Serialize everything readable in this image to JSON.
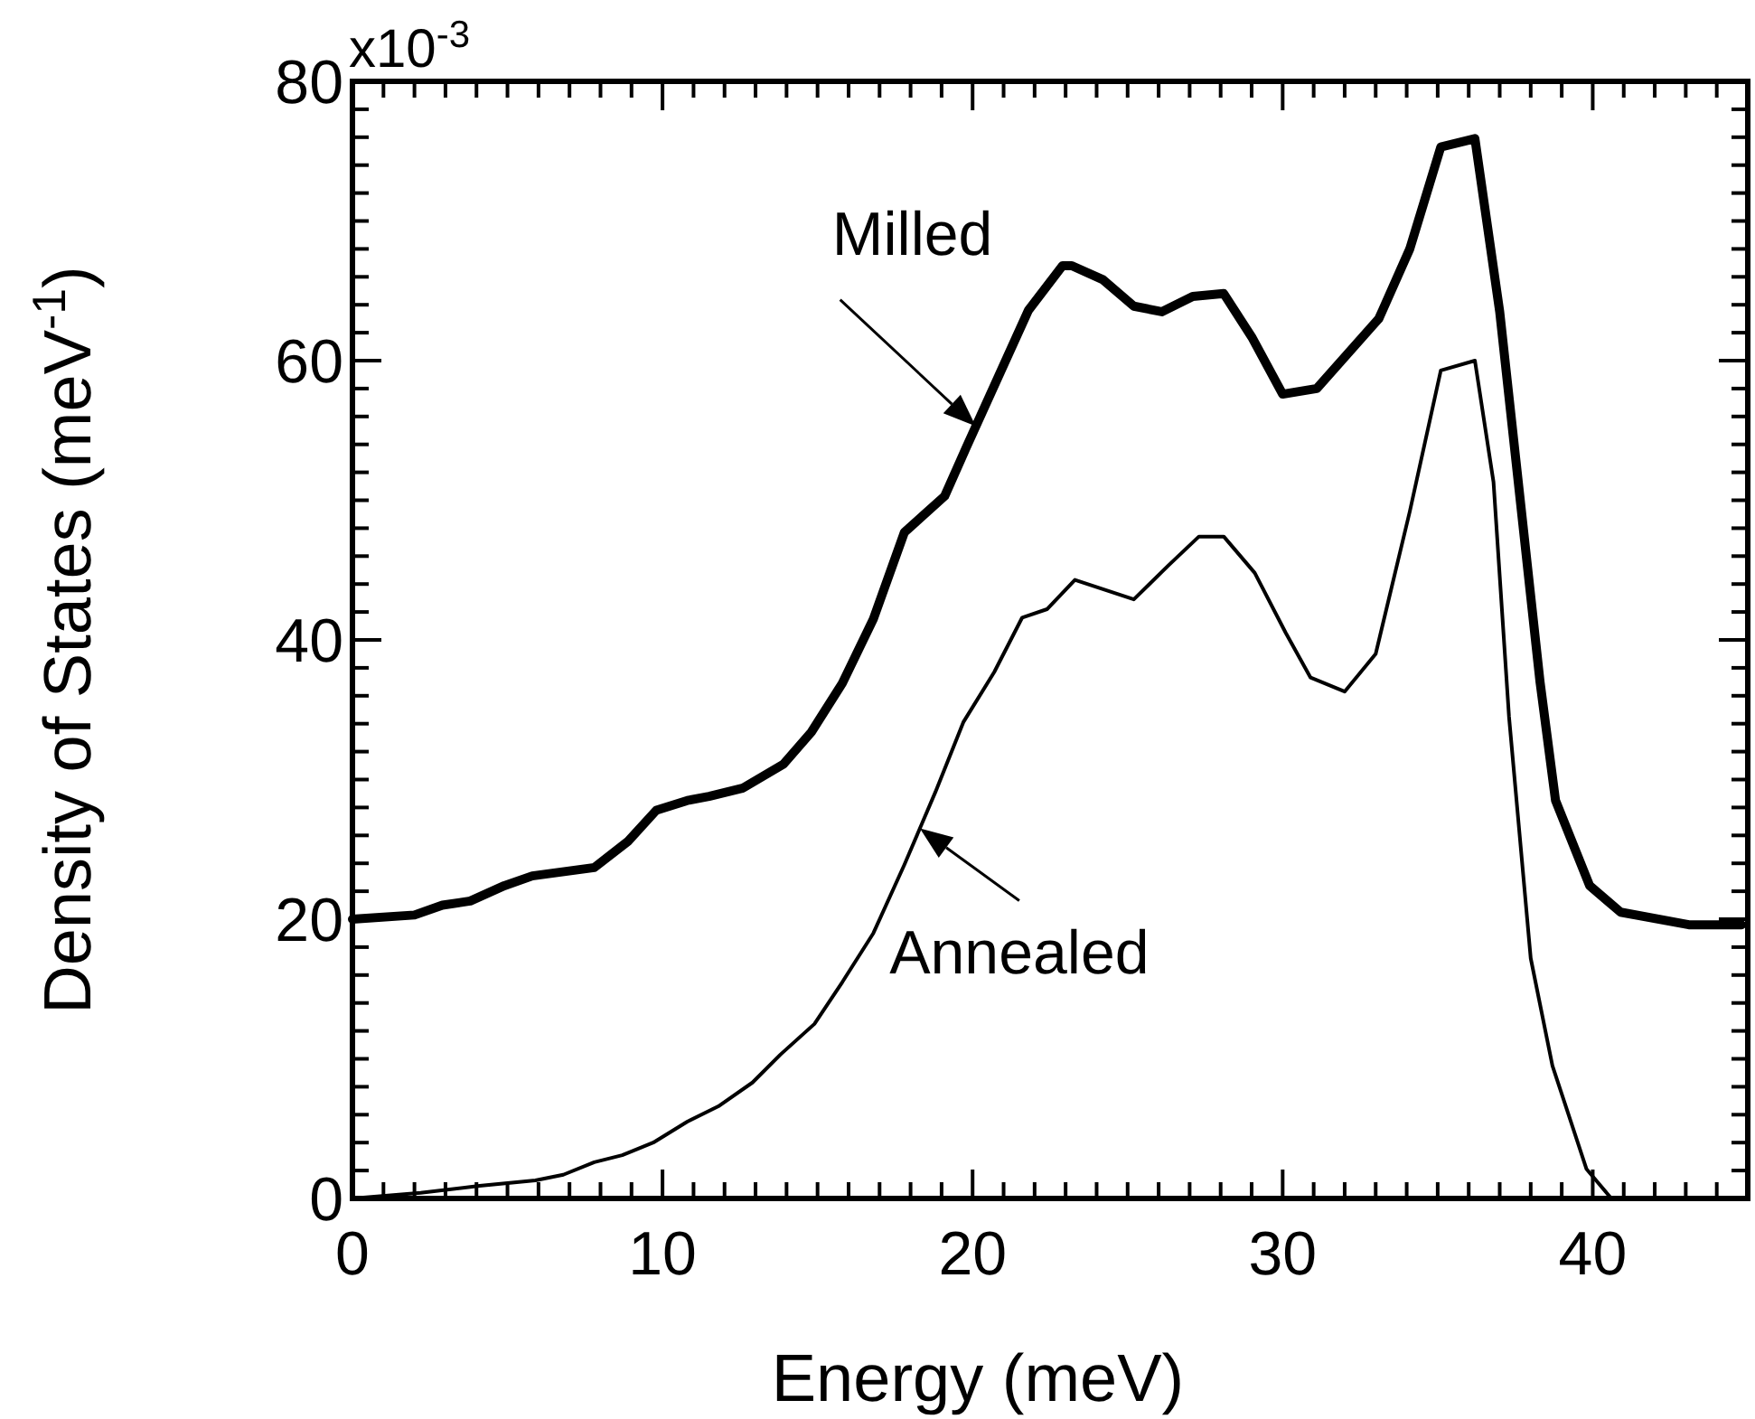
{
  "chart_data": {
    "type": "line",
    "xlabel": "Energy (meV)",
    "ylabel": "Density of States (meV$^{-1}$)",
    "xlim": [
      0,
      45
    ],
    "ylim": [
      0,
      80
    ],
    "xticks": [
      0,
      {
        "value": 1,
        "label": null
      },
      {
        "value": 2,
        "label": null
      },
      {
        "value": 3,
        "label": null
      },
      {
        "value": 4,
        "label": null
      },
      {
        "value": 5,
        "label": null
      },
      {
        "value": 6,
        "label": null
      },
      {
        "value": 7,
        "label": null
      },
      {
        "value": 8,
        "label": null
      },
      {
        "value": 9,
        "label": null
      },
      10,
      {
        "value": 11,
        "label": null
      },
      {
        "value": 12,
        "label": null
      },
      {
        "value": 13,
        "label": null
      },
      {
        "value": 14,
        "label": null
      },
      {
        "value": 15,
        "label": null
      },
      {
        "value": 16,
        "label": null
      },
      {
        "value": 17,
        "label": null
      },
      {
        "value": 18,
        "label": null
      },
      {
        "value": 19,
        "label": null
      },
      20,
      {
        "value": 21,
        "label": null
      },
      {
        "value": 22,
        "label": null
      },
      {
        "value": 23,
        "label": null
      },
      {
        "value": 24,
        "label": null
      },
      {
        "value": 25,
        "label": null
      },
      {
        "value": 26,
        "label": null
      },
      {
        "value": 27,
        "label": null
      },
      {
        "value": 28,
        "label": null
      },
      {
        "value": 29,
        "label": null
      },
      30,
      {
        "value": 31,
        "label": null
      },
      {
        "value": 32,
        "label": null
      },
      {
        "value": 33,
        "label": null
      },
      {
        "value": 34,
        "label": null
      },
      {
        "value": 35,
        "label": null
      },
      {
        "value": 36,
        "label": null
      },
      {
        "value": 37,
        "label": null
      },
      {
        "value": 38,
        "label": null
      },
      {
        "value": 39,
        "label": null
      },
      40,
      {
        "value": 41,
        "label": null
      },
      {
        "value": 42,
        "label": null
      },
      {
        "value": 43,
        "label": null
      },
      {
        "value": 44,
        "label": null
      }
    ],
    "yticks": [
      0,
      {
        "value": 2,
        "label": null
      },
      {
        "value": 4,
        "label": null
      },
      {
        "value": 6,
        "label": null
      },
      {
        "value": 8,
        "label": null
      },
      {
        "value": 10,
        "label": null
      },
      {
        "value": 12,
        "label": null
      },
      {
        "value": 14,
        "label": null
      },
      {
        "value": 16,
        "label": null
      },
      {
        "value": 18,
        "label": null
      },
      20,
      {
        "value": 22,
        "label": null
      },
      {
        "value": 24,
        "label": null
      },
      {
        "value": 26,
        "label": null
      },
      {
        "value": 28,
        "label": null
      },
      {
        "value": 30,
        "label": null
      },
      {
        "value": 32,
        "label": null
      },
      {
        "value": 34,
        "label": null
      },
      {
        "value": 36,
        "label": null
      },
      {
        "value": 38,
        "label": null
      },
      40,
      {
        "value": 42,
        "label": null
      },
      {
        "value": 44,
        "label": null
      },
      {
        "value": 46,
        "label": null
      },
      {
        "value": 48,
        "label": null
      },
      {
        "value": 50,
        "label": null
      },
      {
        "value": 52,
        "label": null
      },
      {
        "value": 54,
        "label": null
      },
      {
        "value": 56,
        "label": null
      },
      {
        "value": 58,
        "label": null
      },
      60,
      {
        "value": 62,
        "label": null
      },
      {
        "value": 64,
        "label": null
      },
      {
        "value": 66,
        "label": null
      },
      {
        "value": 68,
        "label": null
      },
      {
        "value": 70,
        "label": null
      },
      {
        "value": 72,
        "label": null
      },
      {
        "value": 74,
        "label": null
      },
      {
        "value": 76,
        "label": null
      },
      {
        "value": 78,
        "label": null
      },
      80
    ],
    "grid": false,
    "marker": "none",
    "line_style": "solid",
    "series": [
      {
        "color": "#000000",
        "x": [
          0,
          2,
          2.9,
          3.8,
          4.9,
          5.8,
          7.8,
          8.9,
          9.8,
          10.8,
          11.5,
          12.6,
          13.9,
          14.8,
          15.8,
          16.8,
          17.8,
          19.1,
          19.8,
          21.8,
          22.9,
          23.2,
          24.2,
          25.2,
          26.1,
          27.1,
          28.1,
          29,
          30,
          31.1,
          33.1,
          34.1,
          35.1,
          36.2,
          37,
          38.3,
          38.8,
          39.9,
          40.9,
          43.1,
          44.8
        ],
        "values": [
          20,
          20.3,
          21,
          21.3,
          22.4,
          23.1,
          23.7,
          25.6,
          27.8,
          28.5,
          28.8,
          29.4,
          31.1,
          33.4,
          36.9,
          41.5,
          47.7,
          50.3,
          53.8,
          63.6,
          66.8,
          66.8,
          65.8,
          63.9,
          63.5,
          64.6,
          64.8,
          61.7,
          57.6,
          58,
          63,
          68,
          75.3,
          75.9,
          63.5,
          37,
          28.5,
          22.4,
          20.5,
          19.6,
          19.6
        ]
      },
      {
        "color": "#000000",
        "x": [
          0,
          2.2,
          4.1,
          5.9,
          6.8,
          7.8,
          8.7,
          9.7,
          10.8,
          11.8,
          12.9,
          13.8,
          14.9,
          15.8,
          16.8,
          17.8,
          18.8,
          19.7,
          20.7,
          21.6,
          22.4,
          23.3,
          25.2,
          26.3,
          27.3,
          28.1,
          29.1,
          30.1,
          30.9,
          32,
          33,
          34.1,
          35.1,
          36.2,
          36.8,
          37.3,
          38,
          38.7,
          39.8,
          40.6,
          41.5
        ],
        "values": [
          0,
          0.4,
          0.9,
          1.3,
          1.7,
          2.6,
          3.1,
          4,
          5.5,
          6.6,
          8.3,
          10.3,
          12.5,
          15.5,
          19,
          23.9,
          29.1,
          34.1,
          37.7,
          41.6,
          42.2,
          44.3,
          42.9,
          45.3,
          47.4,
          47.4,
          44.8,
          40.5,
          37.3,
          36.3,
          39,
          49.2,
          59.3,
          60,
          51.3,
          34.5,
          17.2,
          9.5,
          2.1,
          0,
          0
        ]
      }
    ],
    "annotations": [
      "x10$^{-3}$",
      {
        "text": "Milled",
        "x": 20.1,
        "y": 55.3
      },
      {
        "text": "Annealed",
        "x": 18.3,
        "y": 26.5
      }
    ]
  }
}
